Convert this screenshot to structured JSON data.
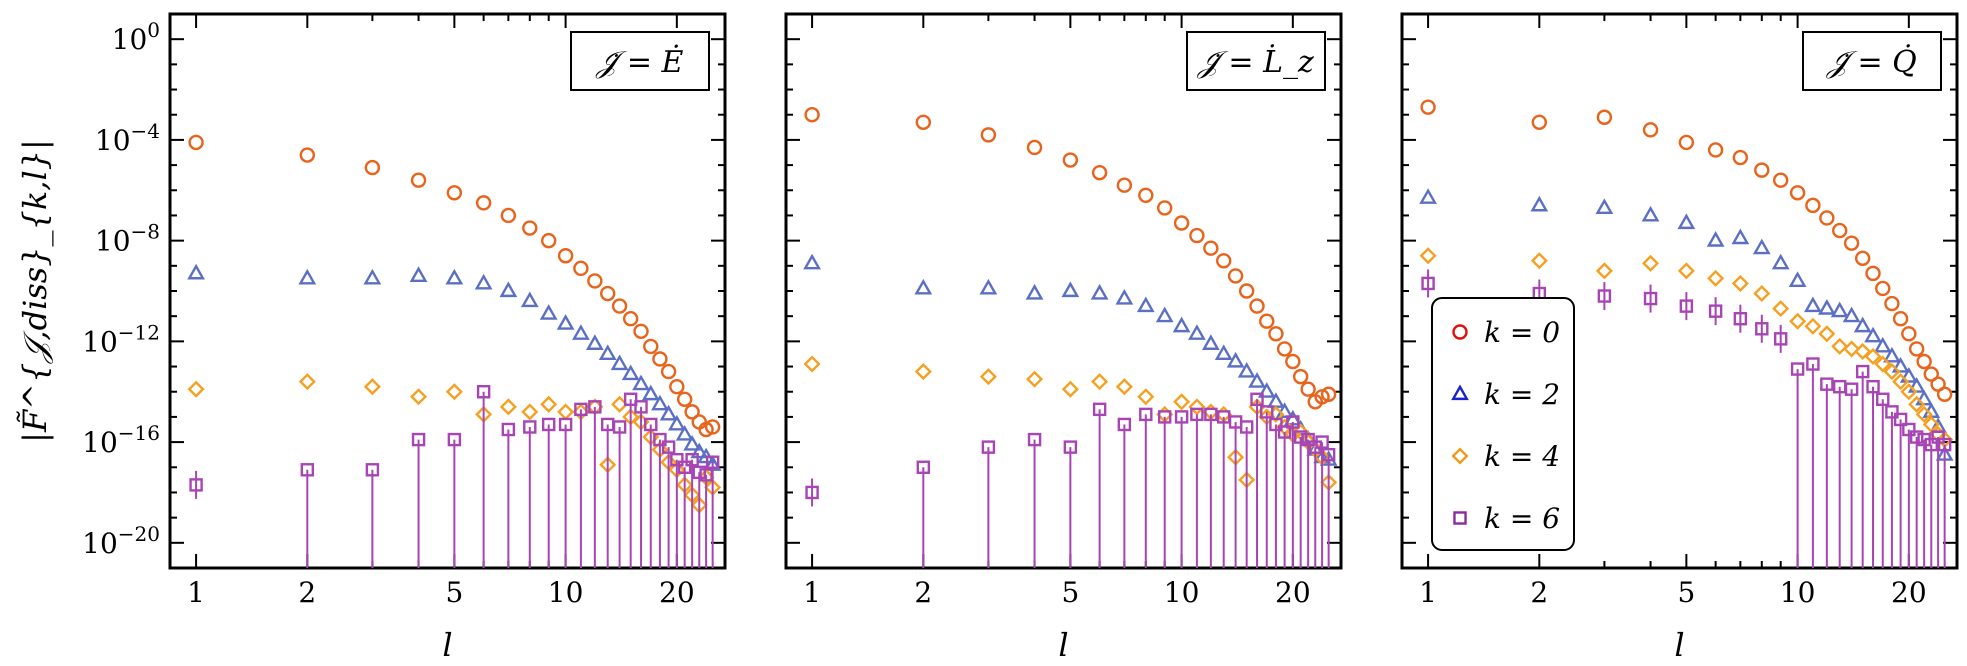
{
  "chart_data": {
    "type": "scatter",
    "shared": {
      "ylabel": "|F̃^{𝒥,diss}_{k,l}|",
      "xlabel": "l",
      "xscale": "log",
      "yscale": "log",
      "xlim": [
        0.85,
        27
      ],
      "ylim_log10": [
        -21,
        1
      ],
      "xticks": [
        "1",
        "2",
        "5",
        "10",
        "20"
      ],
      "xtick_values": [
        1,
        2,
        5,
        10,
        20
      ],
      "yticks": [
        "10^0",
        "10^-4",
        "10^-8",
        "10^-12",
        "10^-16",
        "10^-20"
      ],
      "ytick_exponents": [
        0,
        -4,
        -8,
        -12,
        -16,
        -20
      ]
    },
    "legend": [
      {
        "label": "k = 0",
        "marker": "circle",
        "color": "#e8641c"
      },
      {
        "label": "k = 2",
        "marker": "triangle",
        "color": "#5b70c4"
      },
      {
        "label": "k = 4",
        "marker": "diamond",
        "color": "#f5a021"
      },
      {
        "label": "k = 6",
        "marker": "square",
        "color": "#a845b4"
      }
    ],
    "panels": [
      {
        "title": "𝒥̇ = Ė",
        "series": [
          {
            "name": "k = 0",
            "l": [
              1,
              2,
              3,
              4,
              5,
              6,
              7,
              8,
              9,
              10,
              11,
              12,
              13,
              14,
              15,
              16,
              17,
              18,
              19,
              20,
              21,
              22,
              23,
              24,
              25
            ],
            "log10": [
              -4.1,
              -4.6,
              -5.1,
              -5.6,
              -6.1,
              -6.5,
              -7.0,
              -7.5,
              -8.0,
              -8.6,
              -9.1,
              -9.6,
              -10.1,
              -10.6,
              -11.1,
              -11.6,
              -12.2,
              -12.7,
              -13.2,
              -13.8,
              -14.3,
              -14.8,
              -15.2,
              -15.5,
              -15.4
            ]
          },
          {
            "name": "k = 2",
            "l": [
              1,
              2,
              3,
              4,
              5,
              6,
              7,
              8,
              9,
              10,
              11,
              12,
              13,
              14,
              15,
              16,
              17,
              18,
              19,
              20,
              21,
              22,
              23,
              24,
              25
            ],
            "log10": [
              -9.3,
              -9.5,
              -9.5,
              -9.4,
              -9.5,
              -9.7,
              -10.0,
              -10.4,
              -10.9,
              -11.3,
              -11.7,
              -12.1,
              -12.5,
              -12.9,
              -13.3,
              -13.7,
              -14.1,
              -14.5,
              -14.9,
              -15.3,
              -15.7,
              -16.1,
              -16.4,
              -16.6,
              -16.9
            ]
          },
          {
            "name": "k = 4",
            "l": [
              1,
              2,
              3,
              4,
              5,
              6,
              7,
              8,
              9,
              10,
              11,
              12,
              13,
              14,
              15,
              16,
              17,
              18,
              19,
              20,
              21,
              22,
              23,
              24,
              25
            ],
            "log10": [
              -13.9,
              -13.6,
              -13.8,
              -14.2,
              -14.0,
              -14.9,
              -14.6,
              -14.8,
              -14.5,
              -14.8,
              -14.8,
              -14.6,
              -16.9,
              -14.5,
              -15.0,
              -15.2,
              -15.8,
              -16.3,
              -16.8,
              -17.1,
              -17.7,
              -18.1,
              -18.5,
              -17.4,
              -17.8
            ]
          },
          {
            "name": "k = 6",
            "l": [
              1,
              2,
              3,
              4,
              5,
              6,
              7,
              8,
              9,
              10,
              11,
              12,
              13,
              14,
              15,
              16,
              17,
              18,
              19,
              20,
              21,
              22,
              23,
              24,
              25
            ],
            "log10": [
              -17.7,
              -17.1,
              -17.1,
              -15.9,
              -15.9,
              -14.0,
              -15.5,
              -15.4,
              -15.3,
              -15.3,
              -14.7,
              -14.6,
              -15.3,
              -15.4,
              -14.3,
              -14.6,
              -15.3,
              -15.9,
              -16.2,
              -16.7,
              -17.0,
              -16.7,
              -17.2,
              -17.3,
              -16.8
            ]
          }
        ]
      },
      {
        "title": "𝒥̇ = L̇_z",
        "series": [
          {
            "name": "k = 0",
            "l": [
              1,
              2,
              3,
              4,
              5,
              6,
              7,
              8,
              9,
              10,
              11,
              12,
              13,
              14,
              15,
              16,
              17,
              18,
              19,
              20,
              21,
              22,
              23,
              24,
              25
            ],
            "log10": [
              -3.0,
              -3.3,
              -3.8,
              -4.3,
              -4.8,
              -5.3,
              -5.8,
              -6.2,
              -6.7,
              -7.3,
              -7.8,
              -8.3,
              -8.8,
              -9.4,
              -10.0,
              -10.6,
              -11.2,
              -11.7,
              -12.3,
              -12.8,
              -13.4,
              -13.9,
              -14.4,
              -14.2,
              -14.1
            ]
          },
          {
            "name": "k = 2",
            "l": [
              1,
              2,
              3,
              4,
              5,
              6,
              7,
              8,
              9,
              10,
              11,
              12,
              13,
              14,
              15,
              16,
              17,
              18,
              19,
              20,
              21,
              22,
              23,
              24,
              25
            ],
            "log10": [
              -8.9,
              -9.9,
              -9.9,
              -10.1,
              -10.0,
              -10.1,
              -10.3,
              -10.6,
              -11.0,
              -11.4,
              -11.7,
              -12.1,
              -12.5,
              -12.8,
              -13.2,
              -13.6,
              -14.0,
              -14.4,
              -14.8,
              -15.1,
              -15.5,
              -15.9,
              -16.3,
              -16.6,
              -16.7
            ]
          },
          {
            "name": "k = 4",
            "l": [
              1,
              2,
              3,
              4,
              5,
              6,
              7,
              8,
              9,
              10,
              11,
              12,
              13,
              14,
              15,
              16,
              17,
              18,
              19,
              20,
              21,
              22,
              23,
              24,
              25
            ],
            "log10": [
              -12.9,
              -13.2,
              -13.4,
              -13.5,
              -13.9,
              -13.6,
              -13.8,
              -14.2,
              -14.9,
              -14.4,
              -14.6,
              -14.8,
              -14.9,
              -16.6,
              -17.5,
              -14.6,
              -15.0,
              -14.9,
              -15.4,
              -15.7,
              -15.6,
              -16.0,
              -16.3,
              -16.6,
              -17.6
            ]
          },
          {
            "name": "k = 6",
            "l": [
              1,
              2,
              3,
              4,
              5,
              6,
              7,
              8,
              9,
              10,
              11,
              12,
              13,
              14,
              15,
              16,
              17,
              18,
              19,
              20,
              21,
              22,
              23,
              24,
              25
            ],
            "log10": [
              -18.0,
              -17.0,
              -16.2,
              -15.9,
              -16.2,
              -14.7,
              -15.3,
              -14.9,
              -15.0,
              -15.0,
              -14.9,
              -14.9,
              -15.0,
              -15.2,
              -15.4,
              -14.3,
              -14.8,
              -15.3,
              -15.6,
              -15.2,
              -15.8,
              -15.9,
              -16.2,
              -16.0,
              -16.5
            ]
          }
        ]
      },
      {
        "title": "𝒥̇ = Q̇",
        "series": [
          {
            "name": "k = 0",
            "l": [
              1,
              2,
              3,
              4,
              5,
              6,
              7,
              8,
              9,
              10,
              11,
              12,
              13,
              14,
              15,
              16,
              17,
              18,
              19,
              20,
              21,
              22,
              23,
              24,
              25
            ],
            "log10": [
              -2.7,
              -3.3,
              -3.1,
              -3.6,
              -4.1,
              -4.4,
              -4.7,
              -5.2,
              -5.6,
              -6.1,
              -6.6,
              -7.1,
              -7.6,
              -8.1,
              -8.7,
              -9.3,
              -9.9,
              -10.5,
              -11.1,
              -11.7,
              -12.3,
              -12.8,
              -13.3,
              -13.7,
              -14.1
            ]
          },
          {
            "name": "k = 2",
            "l": [
              1,
              2,
              3,
              4,
              5,
              6,
              7,
              8,
              9,
              10,
              11,
              12,
              13,
              14,
              15,
              16,
              17,
              18,
              19,
              20,
              21,
              22,
              23,
              24,
              25
            ],
            "log10": [
              -6.3,
              -6.6,
              -6.7,
              -7.0,
              -7.3,
              -8.0,
              -7.9,
              -8.3,
              -8.9,
              -9.6,
              -10.6,
              -10.7,
              -10.8,
              -11.0,
              -11.4,
              -11.8,
              -12.2,
              -12.6,
              -13.0,
              -13.4,
              -13.8,
              -14.3,
              -14.8,
              -15.4,
              -16.5
            ]
          },
          {
            "name": "k = 4",
            "l": [
              1,
              2,
              3,
              4,
              5,
              6,
              7,
              8,
              9,
              10,
              11,
              12,
              13,
              14,
              15,
              16,
              17,
              18,
              19,
              20,
              21,
              22,
              23,
              24,
              25
            ],
            "log10": [
              -8.6,
              -8.8,
              -9.2,
              -8.9,
              -9.2,
              -9.5,
              -9.7,
              -10.1,
              -10.7,
              -11.2,
              -11.4,
              -11.7,
              -12.2,
              -12.3,
              -12.4,
              -12.6,
              -12.9,
              -13.2,
              -13.6,
              -14.0,
              -14.5,
              -14.9,
              -15.3,
              -15.7,
              -15.9
            ]
          },
          {
            "name": "k = 6",
            "l": [
              1,
              2,
              3,
              4,
              5,
              6,
              7,
              8,
              9,
              10,
              11,
              12,
              13,
              14,
              15,
              16,
              17,
              18,
              19,
              20,
              21,
              22,
              23,
              24,
              25
            ],
            "log10": [
              -9.7,
              -10.1,
              -10.2,
              -10.3,
              -10.6,
              -10.8,
              -11.1,
              -11.5,
              -11.9,
              -13.1,
              -12.9,
              -13.7,
              -13.8,
              -13.9,
              -13.2,
              -13.8,
              -14.3,
              -14.8,
              -15.1,
              -15.5,
              -15.8,
              -15.9,
              -16.1,
              -15.8,
              -16.1
            ]
          }
        ]
      }
    ]
  }
}
